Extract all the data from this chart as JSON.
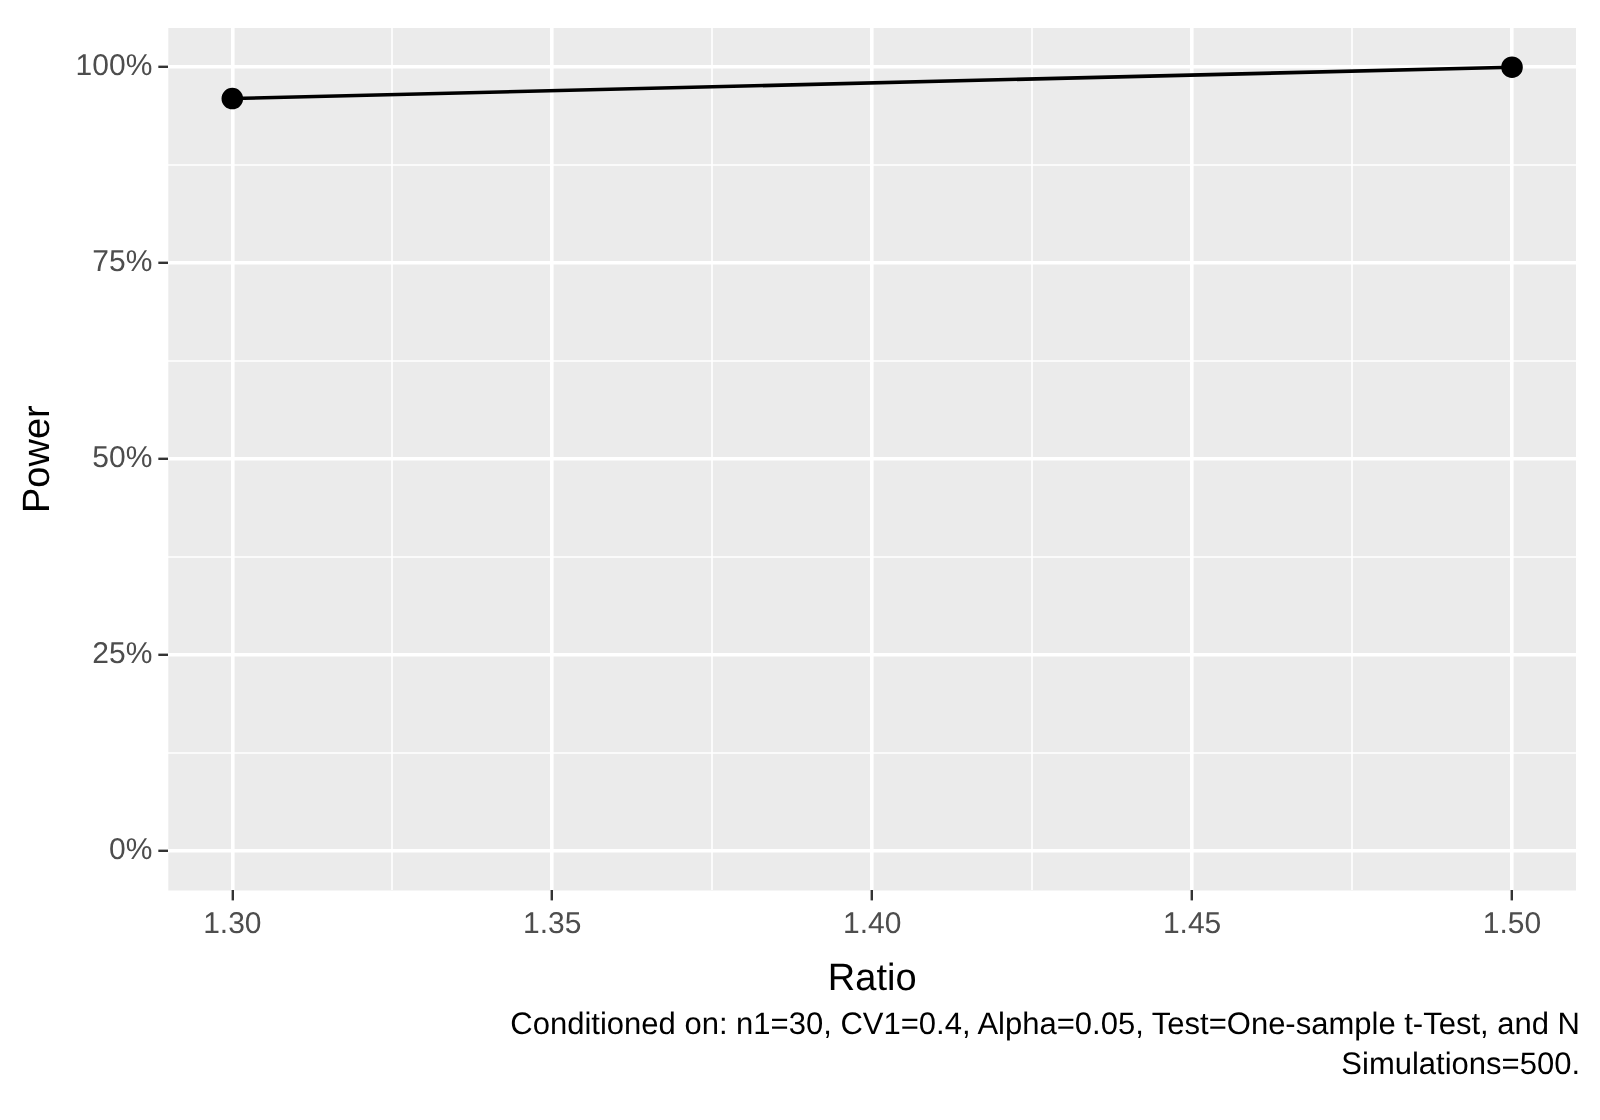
{
  "chart_data": {
    "type": "line",
    "xlabel": "Ratio",
    "ylabel": "Power",
    "x": [
      1.3,
      1.5
    ],
    "series": [
      {
        "color": "#000000",
        "values": [
          96,
          100
        ]
      }
    ],
    "marker": "circle",
    "line_style": "solid",
    "xlim": [
      1.29,
      1.51
    ],
    "xticks": [
      {
        "value": 1.3,
        "label": "1.30"
      },
      {
        "value": 1.325,
        "label": null
      },
      {
        "value": 1.35,
        "label": "1.35"
      },
      {
        "value": 1.375,
        "label": null
      },
      {
        "value": 1.4,
        "label": "1.40"
      },
      {
        "value": 1.425,
        "label": null
      },
      {
        "value": 1.45,
        "label": "1.45"
      },
      {
        "value": 1.475,
        "label": null
      },
      {
        "value": 1.5,
        "label": "1.50"
      }
    ],
    "ylim": [
      -5,
      105
    ],
    "yticks": [
      {
        "value": 0,
        "label": "0%"
      },
      {
        "value": 12.5,
        "label": null
      },
      {
        "value": 25,
        "label": "25%"
      },
      {
        "value": 37.5,
        "label": null
      },
      {
        "value": 50,
        "label": "50%"
      },
      {
        "value": 62.5,
        "label": null
      },
      {
        "value": 75,
        "label": "75%"
      },
      {
        "value": 87.5,
        "label": null
      },
      {
        "value": 100,
        "label": "100%"
      }
    ],
    "grid": true,
    "legend": false,
    "annotations": [
      "Conditioned on: n1=30, CV1=0.4, Alpha=0.05, Test=One-sample t-Test, and N Simulations=500."
    ]
  }
}
